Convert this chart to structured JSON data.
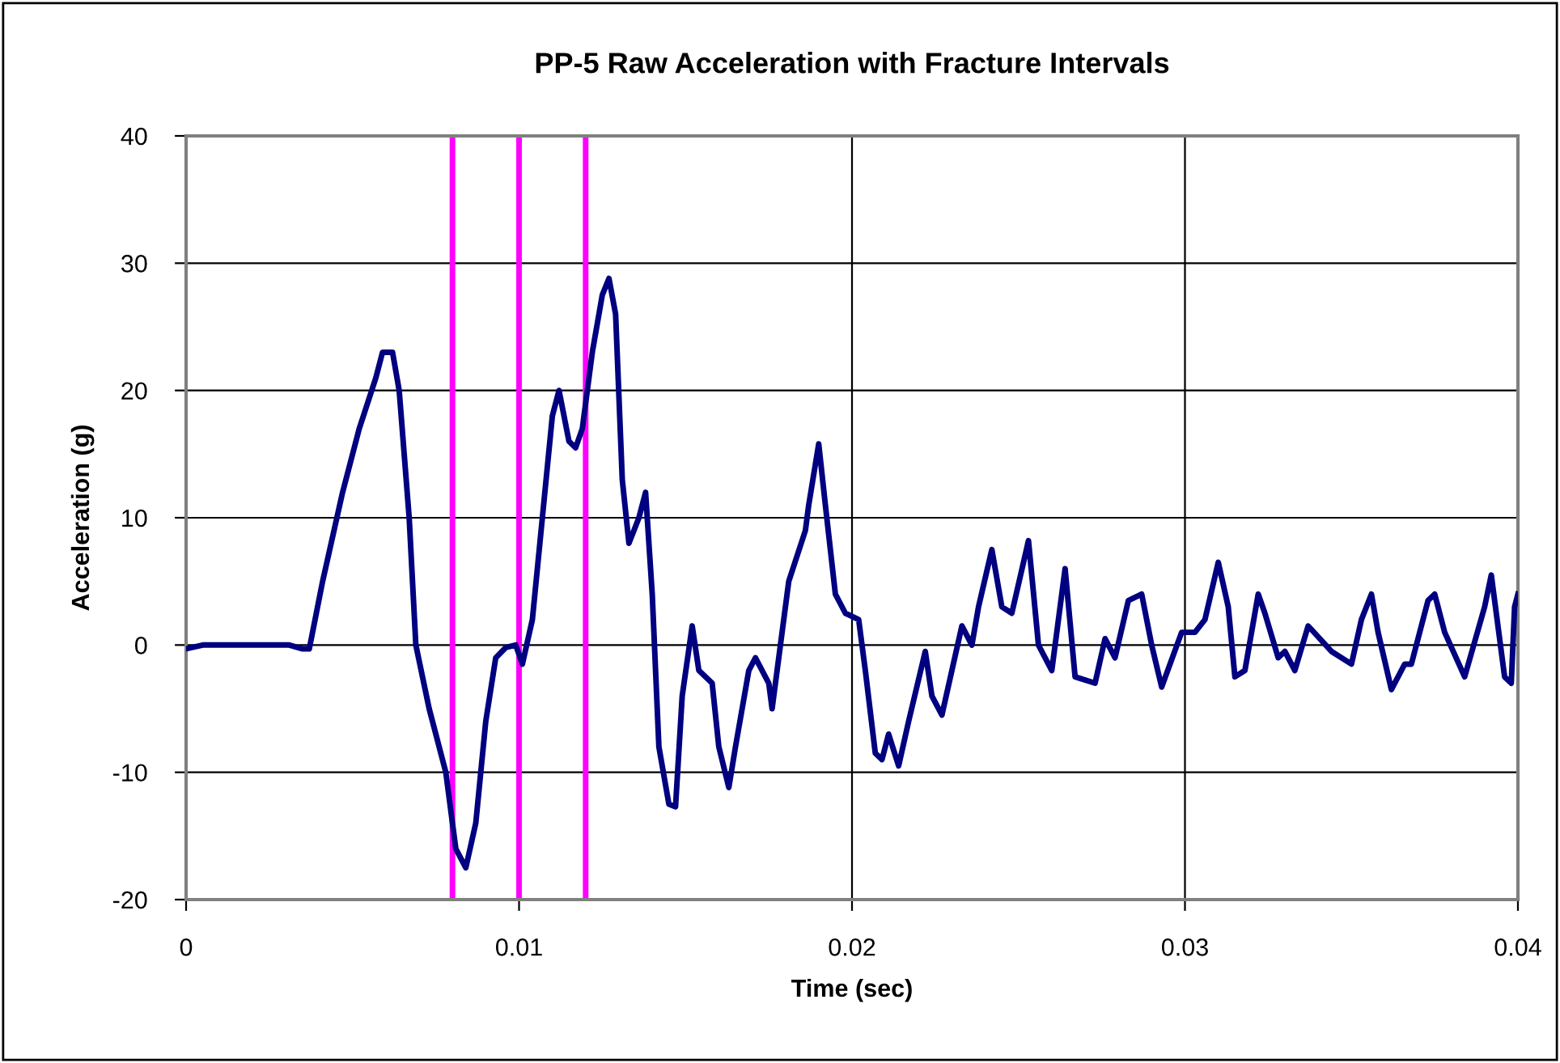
{
  "chart_data": {
    "type": "line",
    "title": "PP-5 Raw Acceleration with Fracture Intervals",
    "xlabel": "Time (sec)",
    "ylabel": "Acceleration (g)",
    "xlim": [
      0,
      0.04
    ],
    "xticks": [
      0,
      0.01,
      0.02,
      0.03,
      0.04
    ],
    "ylim": [
      -20,
      40
    ],
    "yticks": [
      -20,
      -10,
      0,
      10,
      20,
      30,
      40
    ],
    "grid": true,
    "marker": "none",
    "line_style": "solid",
    "x": [
      0,
      0.0005,
      0.0031,
      0.0035,
      0.0037,
      0.0041,
      0.0047,
      0.0052,
      0.0057,
      0.0059,
      0.0062,
      0.0064,
      0.0067,
      0.0069,
      0.0073,
      0.0078,
      0.0081,
      0.0084,
      0.0087,
      0.009,
      0.0093,
      0.0096,
      0.0099,
      0.0101,
      0.0104,
      0.0107,
      0.011,
      0.0112,
      0.0115,
      0.0117,
      0.0119,
      0.0122,
      0.0125,
      0.0127,
      0.0129,
      0.0131,
      0.0133,
      0.0136,
      0.0138,
      0.014,
      0.0142,
      0.0144,
      0.0145,
      0.0147,
      0.0149,
      0.0152,
      0.0154,
      0.0158,
      0.016,
      0.0163,
      0.0165,
      0.0169,
      0.0171,
      0.0175,
      0.0176,
      0.0181,
      0.0186,
      0.0187,
      0.019,
      0.0192,
      0.0195,
      0.0198,
      0.0202,
      0.0204,
      0.0207,
      0.0209,
      0.0211,
      0.0214,
      0.0217,
      0.0222,
      0.0224,
      0.0227,
      0.023,
      0.0233,
      0.0236,
      0.0238,
      0.0242,
      0.0245,
      0.0248,
      0.0253,
      0.0256,
      0.026,
      0.0264,
      0.0267,
      0.0273,
      0.0276,
      0.0279,
      0.0283,
      0.0287,
      0.029,
      0.0293,
      0.0299,
      0.0303,
      0.0306,
      0.031,
      0.0313,
      0.0315,
      0.0318,
      0.0322,
      0.0324,
      0.0328,
      0.033,
      0.0333,
      0.0337,
      0.0344,
      0.035,
      0.0353,
      0.0356,
      0.0358,
      0.0362,
      0.0366,
      0.0368,
      0.0373,
      0.0375,
      0.0378,
      0.0384,
      0.039,
      0.0392,
      0.0396,
      0.0398,
      0.0399,
      0.04
    ],
    "series": [
      {
        "color": "#000080",
        "values": [
          -0.3,
          0,
          0,
          -0.3,
          -0.3,
          5,
          12,
          17,
          21,
          23,
          23,
          20,
          10,
          0,
          -5,
          -10,
          -16,
          -17.5,
          -14,
          -6,
          -1,
          -0.2,
          0,
          -1.5,
          2,
          10,
          18,
          20,
          16,
          15.5,
          17,
          23,
          27.5,
          28.8,
          26,
          13,
          8,
          10,
          12,
          4,
          -8,
          -11,
          -12.5,
          -12.7,
          -4,
          1.5,
          -2,
          -3,
          -8,
          -11.2,
          -8,
          -2,
          -1,
          -3,
          -5,
          5,
          9,
          11,
          15.8,
          11,
          4,
          2.5,
          2,
          -2,
          -8.5,
          -9,
          -7,
          -9.5,
          -6,
          -0.5,
          -4,
          -5.5,
          -2,
          1.5,
          0,
          3,
          7.5,
          3,
          2.5,
          8.2,
          0,
          -2,
          6,
          -2.5,
          -3,
          0.5,
          -1,
          3.5,
          4,
          0,
          -3.3,
          1,
          1,
          2,
          6.5,
          3,
          -2.5,
          -2,
          4,
          2.5,
          -1,
          -0.5,
          -2,
          1.5,
          -0.5,
          -1.5,
          2,
          4,
          1,
          -3.5,
          -1.5,
          -1.5,
          3.5,
          4,
          1,
          -2.5,
          3,
          5.5,
          -2.5,
          -3,
          3,
          4
        ]
      }
    ],
    "ref_lines": [
      {
        "axis": "x",
        "value": 0.008,
        "color": "#ff00ff"
      },
      {
        "axis": "x",
        "value": 0.01,
        "color": "#ff00ff"
      },
      {
        "axis": "x",
        "value": 0.012,
        "color": "#ff00ff"
      }
    ]
  }
}
